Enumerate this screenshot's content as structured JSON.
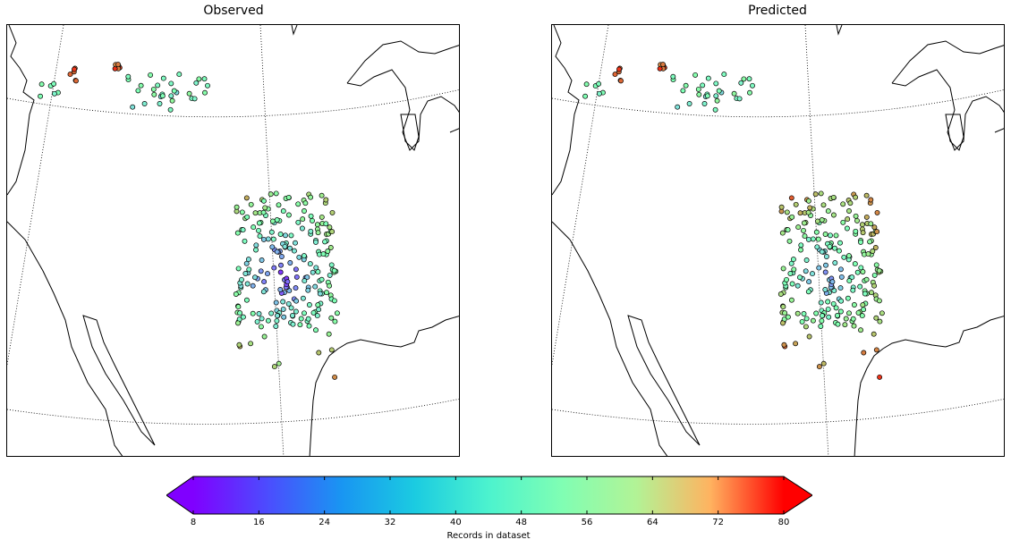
{
  "panels": {
    "observed": {
      "title": "Observed"
    },
    "predicted": {
      "title": "Predicted"
    }
  },
  "colorbar": {
    "label": "Records in dataset",
    "min": 8,
    "max": 80,
    "ticks": [
      "8",
      "16",
      "24",
      "32",
      "40",
      "48",
      "56",
      "64",
      "72",
      "80"
    ],
    "colormap": "rainbow",
    "extend": "both",
    "orientation": "horizontal"
  },
  "map": {
    "projection": "conic",
    "graticule": "dotted",
    "features": [
      "coastlines",
      "Great Lakes"
    ]
  }
}
